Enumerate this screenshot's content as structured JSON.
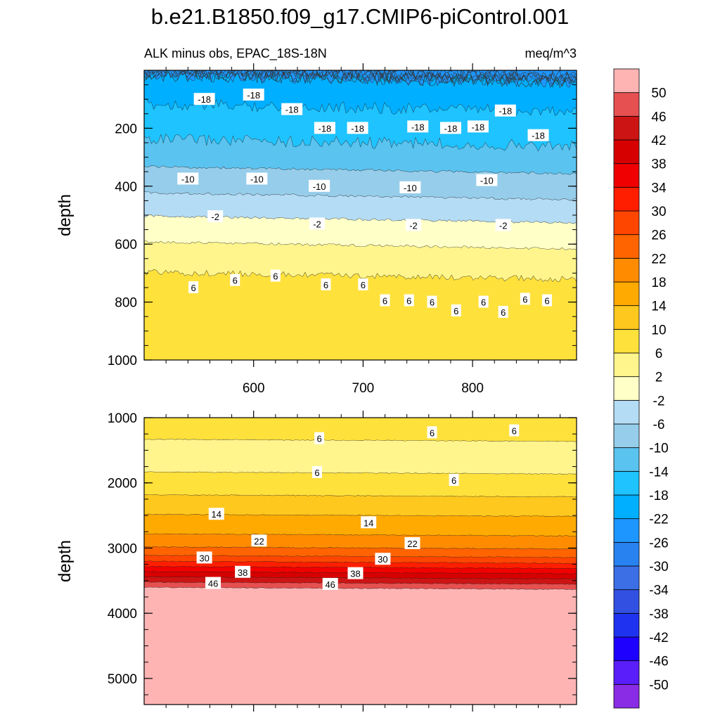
{
  "figure": {
    "title": "b.e21.B1850.f09_g17.CMIP6-piControl.001",
    "left_subtitle": "ALK minus obs, EPAC_18S-18N",
    "right_subtitle": "meq/m^3"
  },
  "colorbar": {
    "levels": [
      -50,
      -46,
      -42,
      -38,
      -34,
      -30,
      -26,
      -22,
      -18,
      -14,
      -10,
      -6,
      -2,
      2,
      6,
      10,
      14,
      18,
      22,
      26,
      30,
      34,
      38,
      42,
      46,
      50
    ],
    "colors_bottom_to_top": [
      "#8a2be6",
      "#5a1efa",
      "#1e00ff",
      "#1e32f0",
      "#3250e1",
      "#3c6ee6",
      "#2882f0",
      "#1e96ff",
      "#00afff",
      "#1ec3ff",
      "#5ac3f0",
      "#96cdeb",
      "#b4dcf5",
      "#ffffc8",
      "#fff58c",
      "#ffe13c",
      "#ffc81e",
      "#ffaa00",
      "#ff8c00",
      "#ff6400",
      "#ff4600",
      "#ff1e00",
      "#f00000",
      "#d70000",
      "#cd1414",
      "#e65050",
      "#ffb4b4"
    ]
  },
  "chart_data": [
    {
      "type": "contour",
      "panel": "upper",
      "xlabel": "",
      "ylabel": "depth",
      "xlim": [
        500,
        895
      ],
      "ylim": [
        1000,
        0
      ],
      "xticks": [
        600,
        700,
        800
      ],
      "yticks": [
        200,
        400,
        600,
        800,
        1000
      ],
      "contour_interval": 4,
      "bands": [
        {
          "from_depth": 0,
          "to_depth": 30,
          "value_range": [
            -30,
            -22
          ]
        },
        {
          "from_depth": 30,
          "to_depth": 130,
          "value_range": [
            -22,
            -18
          ]
        },
        {
          "from_depth": 130,
          "to_depth": 250,
          "value_range": [
            -18,
            -14
          ]
        },
        {
          "from_depth": 250,
          "to_depth": 345,
          "value_range": [
            -14,
            -10
          ]
        },
        {
          "from_depth": 345,
          "to_depth": 435,
          "value_range": [
            -10,
            -6
          ]
        },
        {
          "from_depth": 435,
          "to_depth": 515,
          "value_range": [
            -6,
            -2
          ]
        },
        {
          "from_depth": 515,
          "to_depth": 605,
          "value_range": [
            -2,
            2
          ]
        },
        {
          "from_depth": 605,
          "to_depth": 710,
          "value_range": [
            2,
            6
          ]
        },
        {
          "from_depth": 710,
          "to_depth": 1000,
          "value_range": [
            6,
            10
          ]
        }
      ],
      "contour_labels": [
        {
          "text": "-18",
          "x": 555,
          "depth": 100
        },
        {
          "text": "-18",
          "x": 600,
          "depth": 85
        },
        {
          "text": "-18",
          "x": 635,
          "depth": 135
        },
        {
          "text": "-18",
          "x": 665,
          "depth": 200
        },
        {
          "text": "-18",
          "x": 695,
          "depth": 200
        },
        {
          "text": "-18",
          "x": 750,
          "depth": 195
        },
        {
          "text": "-18",
          "x": 780,
          "depth": 200
        },
        {
          "text": "-18",
          "x": 805,
          "depth": 195
        },
        {
          "text": "-18",
          "x": 830,
          "depth": 140
        },
        {
          "text": "-18",
          "x": 860,
          "depth": 225
        },
        {
          "text": "-10",
          "x": 540,
          "depth": 375
        },
        {
          "text": "-10",
          "x": 603,
          "depth": 375
        },
        {
          "text": "-10",
          "x": 660,
          "depth": 400
        },
        {
          "text": "-10",
          "x": 743,
          "depth": 405
        },
        {
          "text": "-10",
          "x": 813,
          "depth": 380
        },
        {
          "text": "-2",
          "x": 565,
          "depth": 505
        },
        {
          "text": "-2",
          "x": 658,
          "depth": 530
        },
        {
          "text": "-2",
          "x": 746,
          "depth": 535
        },
        {
          "text": "-2",
          "x": 828,
          "depth": 535
        },
        {
          "text": "6",
          "x": 545,
          "depth": 750
        },
        {
          "text": "6",
          "x": 583,
          "depth": 725
        },
        {
          "text": "6",
          "x": 620,
          "depth": 710
        },
        {
          "text": "6",
          "x": 666,
          "depth": 740
        },
        {
          "text": "6",
          "x": 700,
          "depth": 740
        },
        {
          "text": "6",
          "x": 720,
          "depth": 795
        },
        {
          "text": "6",
          "x": 742,
          "depth": 795
        },
        {
          "text": "6",
          "x": 763,
          "depth": 800
        },
        {
          "text": "6",
          "x": 785,
          "depth": 830
        },
        {
          "text": "6",
          "x": 810,
          "depth": 800
        },
        {
          "text": "6",
          "x": 828,
          "depth": 835
        },
        {
          "text": "6",
          "x": 848,
          "depth": 790
        },
        {
          "text": "6",
          "x": 868,
          "depth": 795
        }
      ]
    },
    {
      "type": "contour",
      "panel": "lower",
      "xlabel": "",
      "ylabel": "depth",
      "xlim": [
        500,
        895
      ],
      "ylim": [
        5400,
        1000
      ],
      "yticks": [
        1000,
        2000,
        3000,
        4000,
        5000
      ],
      "contour_interval": 4,
      "bands": [
        {
          "from_depth": 1000,
          "to_depth": 1350,
          "value_range": [
            6,
            10
          ]
        },
        {
          "from_depth": 1350,
          "to_depth": 1850,
          "value_range": [
            2,
            6
          ]
        },
        {
          "from_depth": 1850,
          "to_depth": 2200,
          "value_range": [
            6,
            10
          ]
        },
        {
          "from_depth": 2200,
          "to_depth": 2500,
          "value_range": [
            10,
            14
          ]
        },
        {
          "from_depth": 2500,
          "to_depth": 2800,
          "value_range": [
            14,
            18
          ]
        },
        {
          "from_depth": 2800,
          "to_depth": 3000,
          "value_range": [
            18,
            22
          ]
        },
        {
          "from_depth": 3000,
          "to_depth": 3130,
          "value_range": [
            22,
            26
          ]
        },
        {
          "from_depth": 3130,
          "to_depth": 3220,
          "value_range": [
            26,
            30
          ]
        },
        {
          "from_depth": 3220,
          "to_depth": 3300,
          "value_range": [
            30,
            34
          ]
        },
        {
          "from_depth": 3300,
          "to_depth": 3380,
          "value_range": [
            34,
            38
          ]
        },
        {
          "from_depth": 3380,
          "to_depth": 3460,
          "value_range": [
            38,
            42
          ]
        },
        {
          "from_depth": 3460,
          "to_depth": 3540,
          "value_range": [
            42,
            46
          ]
        },
        {
          "from_depth": 3540,
          "to_depth": 3620,
          "value_range": [
            46,
            50
          ]
        },
        {
          "from_depth": 3620,
          "to_depth": 5400,
          "value_range": [
            50,
            54
          ]
        }
      ],
      "contour_labels": [
        {
          "text": "6",
          "x": 660,
          "depth": 1320
        },
        {
          "text": "6",
          "x": 763,
          "depth": 1230
        },
        {
          "text": "6",
          "x": 838,
          "depth": 1200
        },
        {
          "text": "6",
          "x": 658,
          "depth": 1840
        },
        {
          "text": "6",
          "x": 783,
          "depth": 1960
        },
        {
          "text": "14",
          "x": 566,
          "depth": 2480
        },
        {
          "text": "14",
          "x": 705,
          "depth": 2610
        },
        {
          "text": "22",
          "x": 605,
          "depth": 2890
        },
        {
          "text": "22",
          "x": 745,
          "depth": 2930
        },
        {
          "text": "30",
          "x": 555,
          "depth": 3150
        },
        {
          "text": "30",
          "x": 718,
          "depth": 3170
        },
        {
          "text": "38",
          "x": 590,
          "depth": 3370
        },
        {
          "text": "38",
          "x": 693,
          "depth": 3390
        },
        {
          "text": "46",
          "x": 563,
          "depth": 3540
        },
        {
          "text": "46",
          "x": 670,
          "depth": 3555
        }
      ]
    }
  ]
}
